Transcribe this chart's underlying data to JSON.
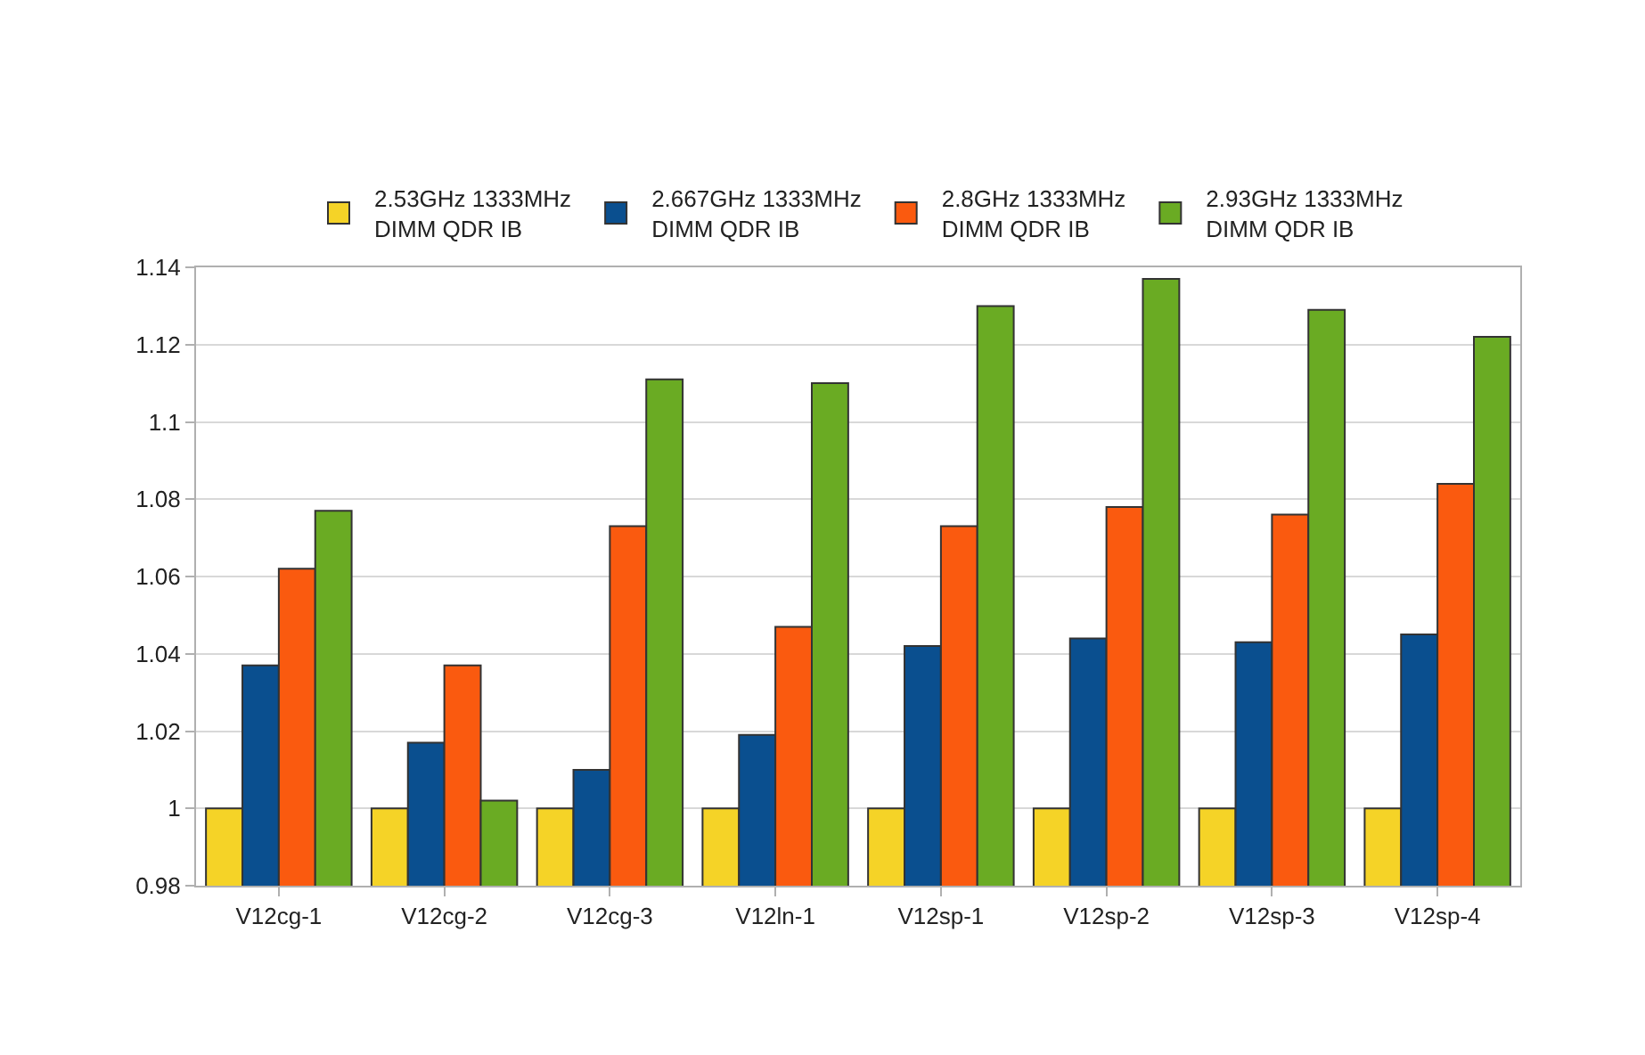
{
  "chart_data": {
    "type": "bar",
    "categories": [
      "V12cg-1",
      "V12cg-2",
      "V12cg-3",
      "V12ln-1",
      "V12sp-1",
      "V12sp-2",
      "V12sp-3",
      "V12sp-4"
    ],
    "series": [
      {
        "name": "2.53GHz 1333MHz\nDIMM QDR IB",
        "color": "#f5d327",
        "values": [
          1,
          1,
          1,
          1,
          1,
          1,
          1,
          1
        ]
      },
      {
        "name": "2.667GHz 1333MHz\nDIMM QDR IB",
        "color": "#0a4f8f",
        "values": [
          1.037,
          1.017,
          1.01,
          1.019,
          1.042,
          1.044,
          1.043,
          1.045
        ]
      },
      {
        "name": "2.8GHz 1333MHz\nDIMM QDR IB",
        "color": "#fa5a0f",
        "values": [
          1.062,
          1.037,
          1.073,
          1.047,
          1.073,
          1.078,
          1.076,
          1.084
        ]
      },
      {
        "name": "2.93GHz 1333MHz\nDIMM QDR IB",
        "color": "#6aab23",
        "values": [
          1.077,
          1.002,
          1.111,
          1.11,
          1.13,
          1.137,
          1.129,
          1.122
        ]
      }
    ],
    "ylim": [
      0.98,
      1.14
    ],
    "yticks": [
      0.98,
      1,
      1.02,
      1.04,
      1.06,
      1.08,
      1.1,
      1.12,
      1.14
    ],
    "grid": "y",
    "legend": "top"
  }
}
